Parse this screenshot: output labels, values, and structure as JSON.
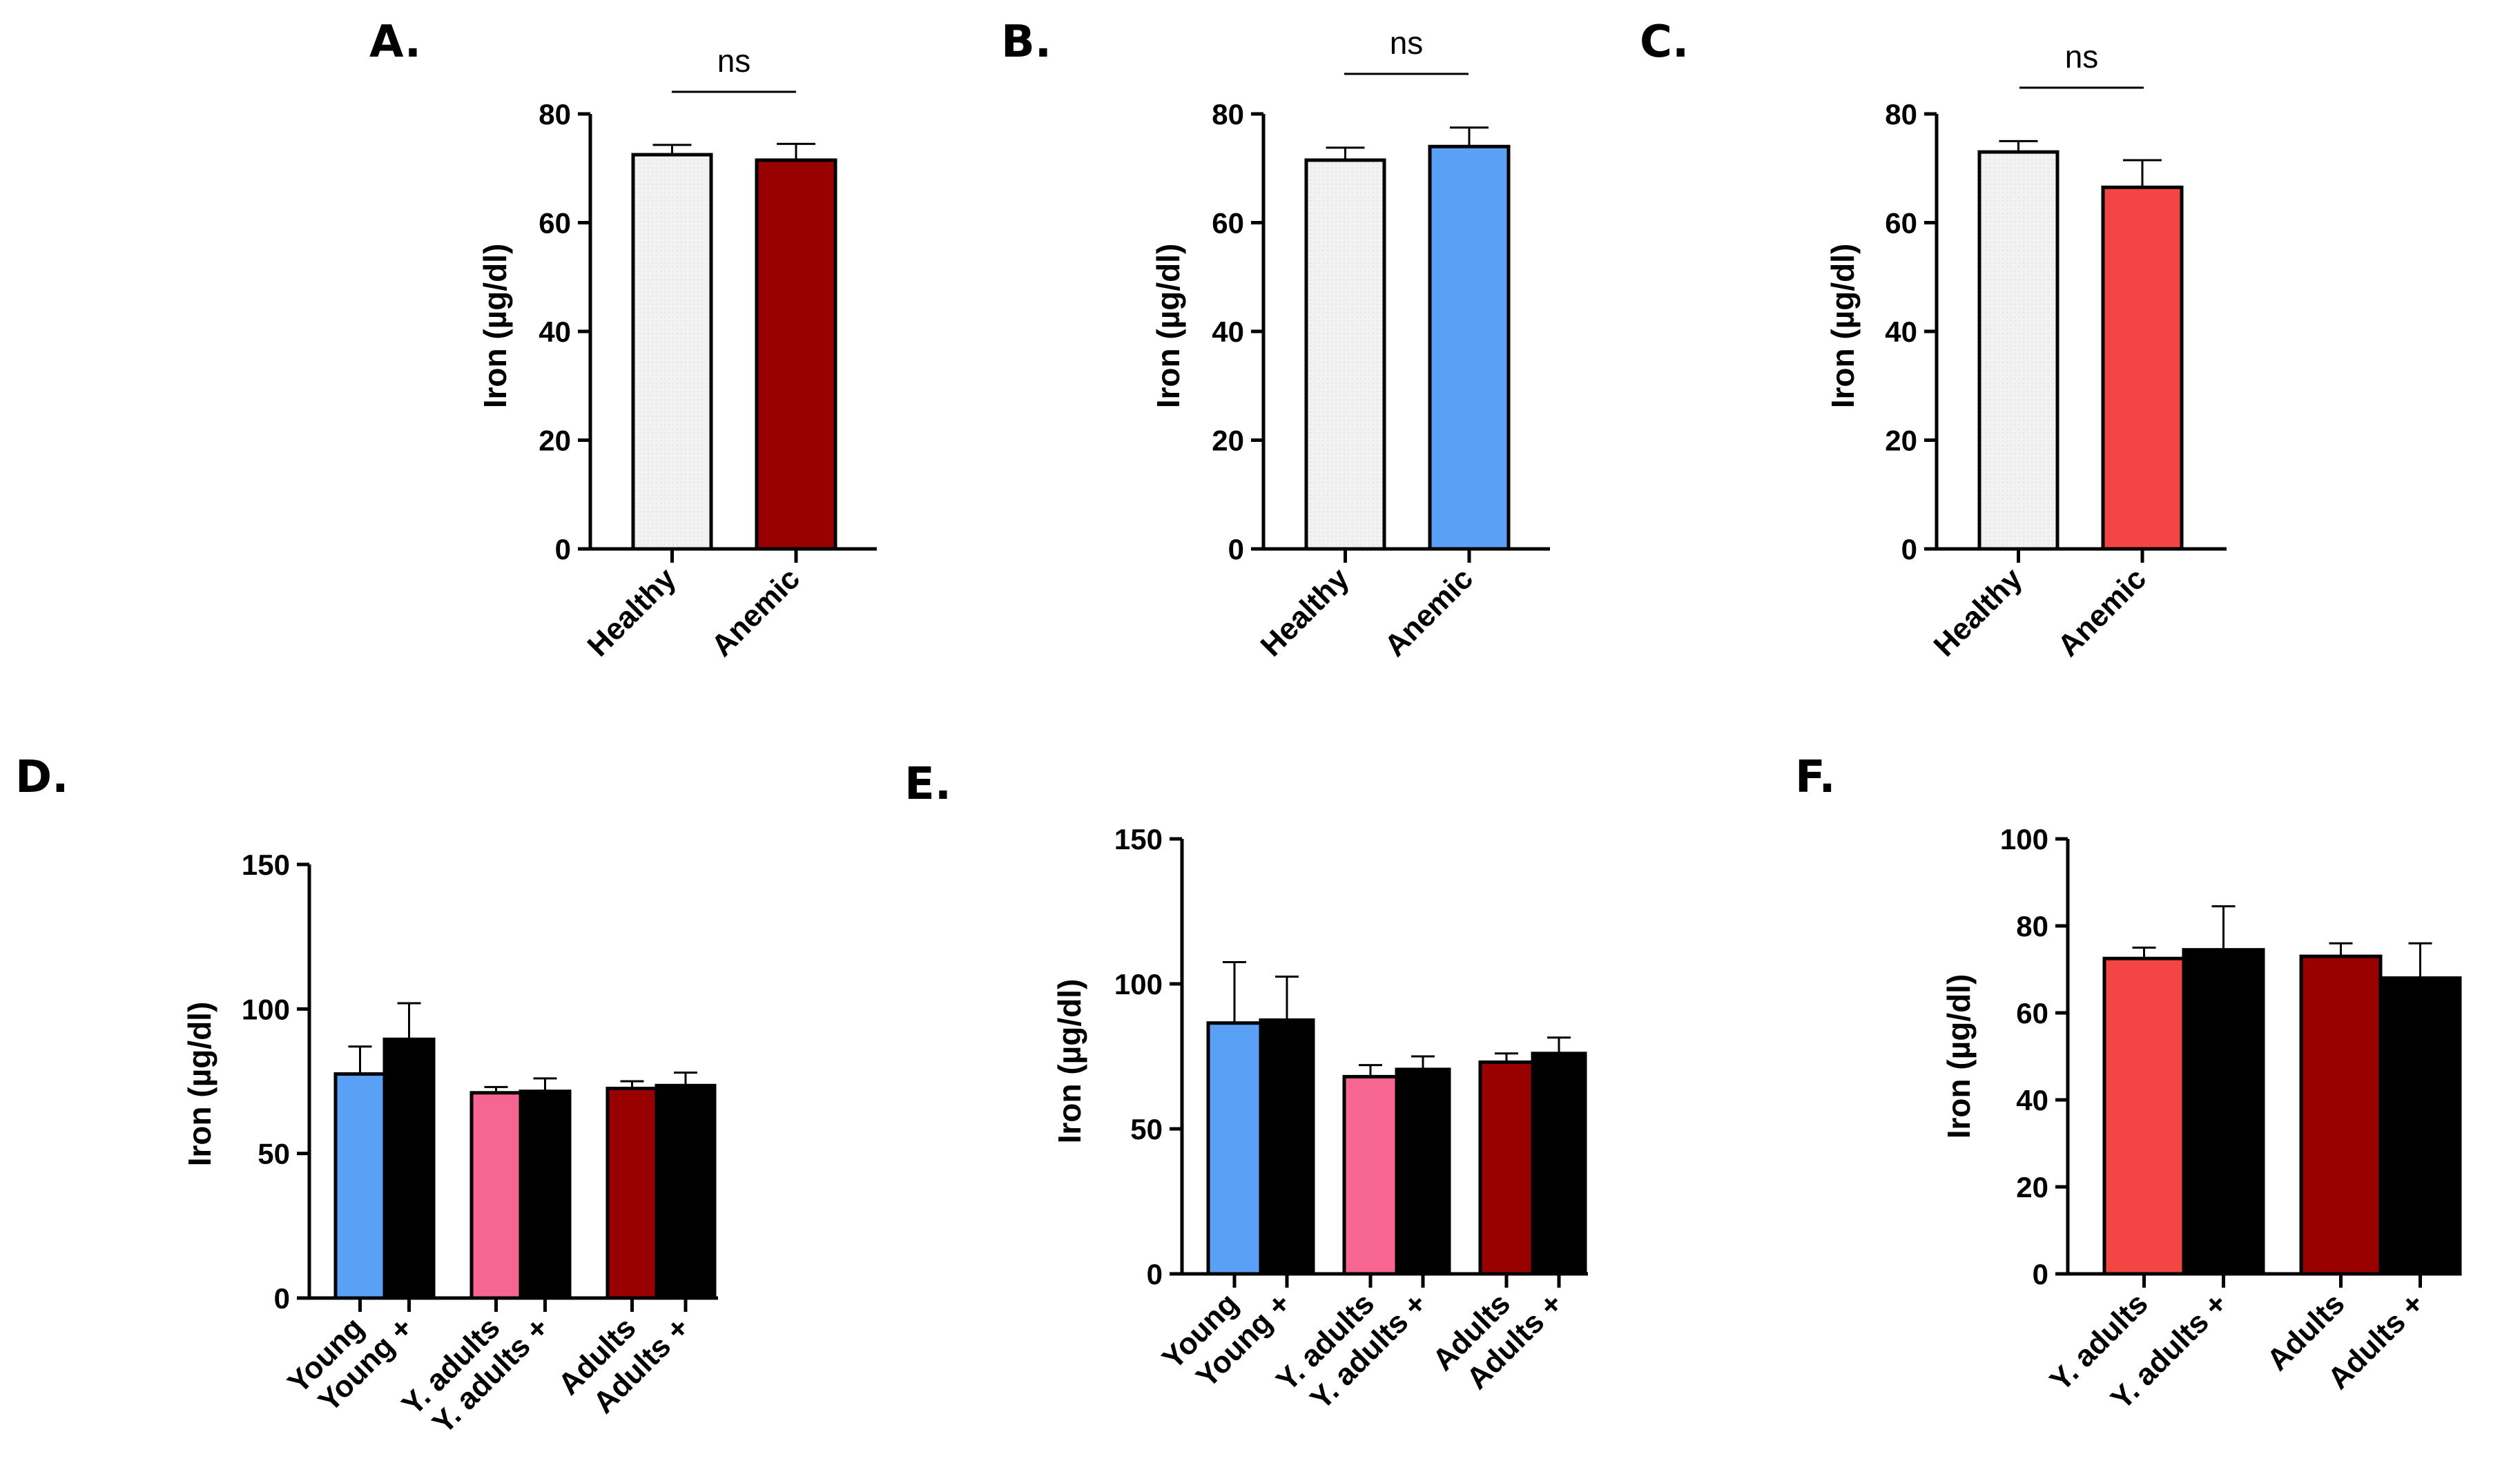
{
  "colors": {
    "healthy": "#f2f2f2",
    "dark_red": "#990000",
    "blue": "#5aa0f5",
    "red": "#f44545",
    "pink": "#f76593",
    "black": "#000000",
    "axis": "#000000"
  },
  "chart_data": [
    {
      "panel": "A.",
      "type": "bar",
      "ylabel": "Iron (µg/dl)",
      "ylim": [
        0,
        80
      ],
      "yticks": [
        0,
        20,
        40,
        60,
        80
      ],
      "categories": [
        "Healthy",
        "Anemic"
      ],
      "values": [
        72.5,
        71.5
      ],
      "errors": [
        1.8,
        3.0
      ],
      "bar_colors": [
        "#f2f2f2",
        "#990000"
      ],
      "significance": "ns"
    },
    {
      "panel": "B.",
      "type": "bar",
      "ylabel": "Iron (µg/dl)",
      "ylim": [
        0,
        80
      ],
      "yticks": [
        0,
        20,
        40,
        60,
        80
      ],
      "categories": [
        "Healthy",
        "Anemic"
      ],
      "values": [
        71.5,
        74.0
      ],
      "errors": [
        2.3,
        3.5
      ],
      "bar_colors": [
        "#f2f2f2",
        "#5aa0f5"
      ],
      "significance": "ns"
    },
    {
      "panel": "C.",
      "type": "bar",
      "ylabel": "Iron (µg/dl)",
      "ylim": [
        0,
        80
      ],
      "yticks": [
        0,
        20,
        40,
        60,
        80
      ],
      "categories": [
        "Healthy",
        "Anemic"
      ],
      "values": [
        73.0,
        66.5
      ],
      "errors": [
        2.0,
        5.0
      ],
      "bar_colors": [
        "#f2f2f2",
        "#f44545"
      ],
      "significance": "ns"
    },
    {
      "panel": "D.",
      "type": "bar",
      "ylabel": "Iron (µg/dl)",
      "ylim": [
        0,
        150
      ],
      "yticks": [
        0,
        50,
        100,
        150
      ],
      "categories": [
        "Young",
        "Young +",
        "Y. adults",
        "Y. adults +",
        "Adults",
        "Adults +"
      ],
      "values": [
        77.5,
        89.5,
        71.0,
        71.5,
        72.5,
        73.5
      ],
      "errors": [
        9.5,
        12.5,
        2.0,
        4.5,
        2.5,
        4.5
      ],
      "bar_colors": [
        "#5aa0f5",
        "#000000",
        "#f76593",
        "#000000",
        "#990000",
        "#000000"
      ]
    },
    {
      "panel": "E.",
      "type": "bar",
      "ylabel": "Iron (µg/dl)",
      "ylim": [
        0,
        150
      ],
      "yticks": [
        0,
        50,
        100,
        150
      ],
      "categories": [
        "Young",
        "Young +",
        "Y. adults",
        "Y. adults +",
        "Adults",
        "Adults +"
      ],
      "values": [
        86.5,
        87.5,
        68.0,
        70.5,
        73.0,
        76.0
      ],
      "errors": [
        21.0,
        15.0,
        4.0,
        4.5,
        3.0,
        5.5
      ],
      "bar_colors": [
        "#5aa0f5",
        "#000000",
        "#f76593",
        "#000000",
        "#990000",
        "#000000"
      ]
    },
    {
      "panel": "F.",
      "type": "bar",
      "ylabel": "Iron (µg/dl)",
      "ylim": [
        0,
        100
      ],
      "yticks": [
        0,
        20,
        40,
        60,
        80,
        100
      ],
      "categories": [
        "Y. adults",
        "Y. adults +",
        "Adults",
        "Adults +"
      ],
      "values": [
        72.5,
        74.5,
        73.0,
        68.0
      ],
      "errors": [
        2.5,
        10.0,
        3.0,
        8.0
      ],
      "bar_colors": [
        "#f44545",
        "#000000",
        "#990000",
        "#000000"
      ]
    }
  ]
}
